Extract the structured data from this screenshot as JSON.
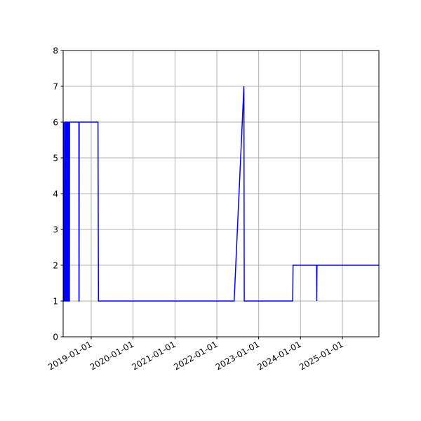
{
  "chart_data": {
    "type": "line",
    "title": "",
    "xlabel": "",
    "ylabel": "",
    "grid": true,
    "legend": "none",
    "x_axis": {
      "kind": "date",
      "range": [
        "2018-05-01",
        "2025-11-15"
      ],
      "ticks": [
        "2019-01-01",
        "2020-01-01",
        "2021-01-01",
        "2022-01-01",
        "2023-01-01",
        "2024-01-01",
        "2025-01-01"
      ]
    },
    "y_axis": {
      "range": [
        0,
        8
      ],
      "ticks": [
        "0",
        "1",
        "2",
        "3",
        "4",
        "5",
        "6",
        "7",
        "8"
      ]
    },
    "series": [
      {
        "color": "#0000ff",
        "points": [
          [
            "2018-05-03",
            6
          ],
          [
            "2018-05-04",
            1
          ],
          [
            "2018-05-12",
            1
          ],
          [
            "2018-05-13",
            6
          ],
          [
            "2018-05-16",
            6
          ],
          [
            "2018-05-17",
            1
          ],
          [
            "2018-05-20",
            1
          ],
          [
            "2018-05-21",
            6
          ],
          [
            "2018-05-24",
            6
          ],
          [
            "2018-05-25",
            1
          ],
          [
            "2018-05-28",
            1
          ],
          [
            "2018-05-29",
            6
          ],
          [
            "2018-06-01",
            6
          ],
          [
            "2018-06-02",
            1
          ],
          [
            "2018-06-04",
            1
          ],
          [
            "2018-06-05",
            6
          ],
          [
            "2018-06-08",
            6
          ],
          [
            "2018-06-09",
            1
          ],
          [
            "2018-06-11",
            1
          ],
          [
            "2018-06-12",
            6
          ],
          [
            "2018-06-15",
            6
          ],
          [
            "2018-06-16",
            1
          ],
          [
            "2018-06-18",
            1
          ],
          [
            "2018-06-19",
            6
          ],
          [
            "2018-06-22",
            6
          ],
          [
            "2018-06-23",
            1
          ],
          [
            "2018-06-25",
            1
          ],
          [
            "2018-06-26",
            6
          ],
          [
            "2018-09-15",
            6
          ],
          [
            "2018-09-16",
            1
          ],
          [
            "2018-09-17",
            1
          ],
          [
            "2018-09-18",
            6
          ],
          [
            "2019-03-01",
            6
          ],
          [
            "2019-03-05",
            1
          ],
          [
            "2022-06-01",
            1
          ],
          [
            "2022-08-25",
            7
          ],
          [
            "2022-08-28",
            1
          ],
          [
            "2023-10-25",
            1
          ],
          [
            "2023-10-28",
            2
          ],
          [
            "2024-05-20",
            2
          ],
          [
            "2024-05-22",
            1
          ],
          [
            "2024-05-24",
            2
          ],
          [
            "2025-11-15",
            2
          ]
        ]
      }
    ]
  }
}
